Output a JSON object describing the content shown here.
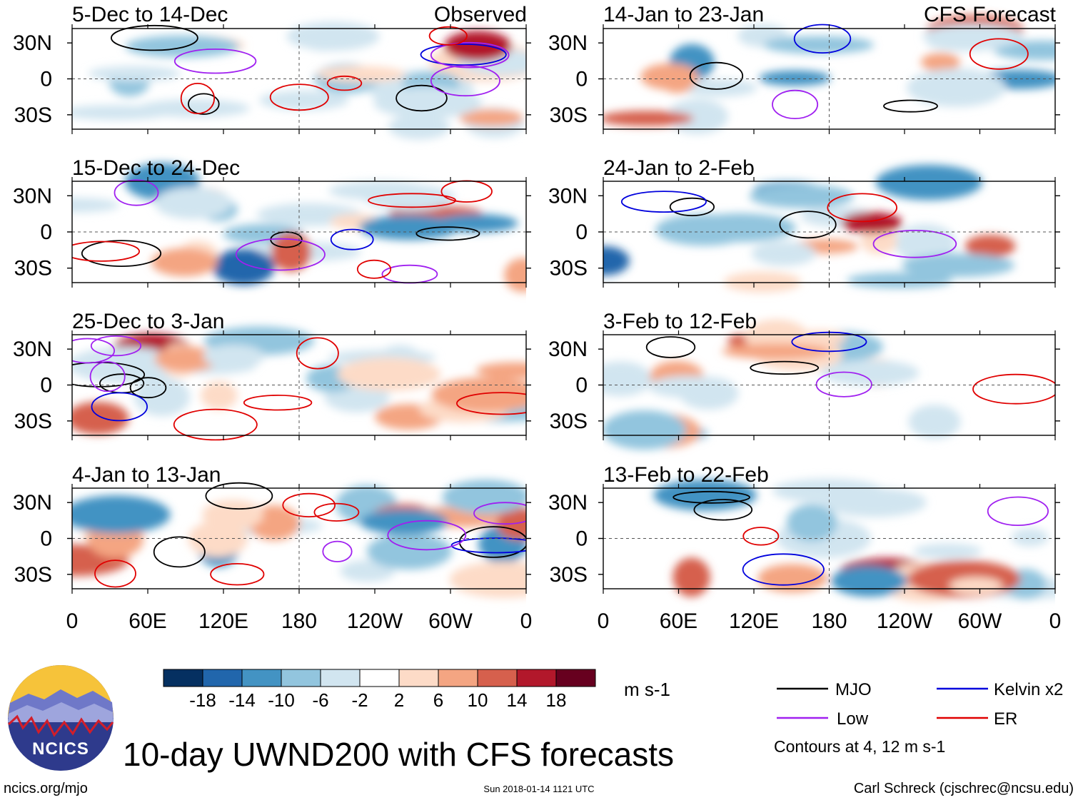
{
  "chart_data": {
    "type": "heatmap",
    "title": "10-day UWND200 with CFS forecasts",
    "variable": "UWND200",
    "units": "m s-1",
    "longitude_ticks": [
      "0",
      "60E",
      "120E",
      "180",
      "120W",
      "60W",
      "0"
    ],
    "latitude_ticks": [
      "30N",
      "0",
      "30S"
    ],
    "columns": [
      {
        "label": "Observed",
        "panels": [
          "5-Dec to 14-Dec",
          "15-Dec to 24-Dec",
          "25-Dec to 3-Jan",
          "4-Jan to 13-Jan"
        ]
      },
      {
        "label": "CFS Forecast",
        "panels": [
          "14-Jan to 23-Jan",
          "24-Jan to 2-Feb",
          "3-Feb to 12-Feb",
          "13-Feb to 22-Feb"
        ]
      }
    ],
    "colorbar": {
      "tick_labels": [
        "-18",
        "-14",
        "-10",
        "-6",
        "-2",
        "2",
        "6",
        "10",
        "14",
        "18"
      ],
      "colors": [
        "#053061",
        "#2166ac",
        "#4393c3",
        "#92c5de",
        "#d1e5f0",
        "#ffffff",
        "#fddbc7",
        "#f4a582",
        "#d6604d",
        "#b2182b",
        "#67001f"
      ]
    },
    "legend": [
      {
        "name": "MJO",
        "color": "#000000"
      },
      {
        "name": "Kelvin x2",
        "color": "#0000dd"
      },
      {
        "name": "Low",
        "color": "#a020f0"
      },
      {
        "name": "ER",
        "color": "#e00000"
      }
    ],
    "contour_note": "Contours at 4, 12 m s-1"
  },
  "branding": {
    "logo_text": "NCICS",
    "website": "ncics.org/mjo",
    "timestamp": "Sun 2018-01-14 1121 UTC",
    "author": "Carl Schreck (cjschrec@ncsu.edu)"
  }
}
